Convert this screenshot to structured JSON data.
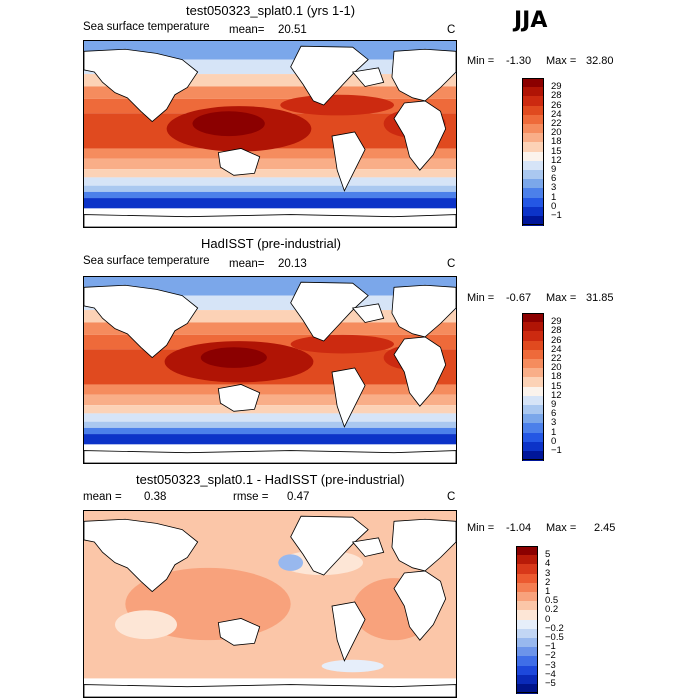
{
  "season": "JJA",
  "panels": [
    {
      "title": "test050323_splat0.1 (yrs 1-1)",
      "variable": "Sea surface temperature",
      "mean_label": "mean=",
      "mean_value": "20.51",
      "units": "C",
      "min_label": "Min =",
      "min_value": "-1.30",
      "max_label": "Max =",
      "max_value": "32.80",
      "colorbar": {
        "labels": [
          "29",
          "28",
          "26",
          "24",
          "22",
          "20",
          "18",
          "15",
          "12",
          "9",
          "6",
          "3",
          "1",
          "0",
          "−1"
        ],
        "colors": [
          "#8b0000",
          "#b01405",
          "#cc2a10",
          "#e04a1f",
          "#ee6a3a",
          "#f58c5e",
          "#f9ae88",
          "#fcd2b6",
          "#fbf3ec",
          "#d6e4f7",
          "#aac8f0",
          "#7ba7ea",
          "#4c80ea",
          "#2457e4",
          "#0c33c8",
          "#00169a"
        ]
      }
    },
    {
      "title": "HadISST (pre-industrial)",
      "variable": "Sea surface temperature",
      "mean_label": "mean=",
      "mean_value": "20.13",
      "units": "C",
      "min_label": "Min =",
      "min_value": "-0.67",
      "max_label": "Max =",
      "max_value": "31.85",
      "colorbar": {
        "labels": [
          "29",
          "28",
          "26",
          "24",
          "22",
          "20",
          "18",
          "15",
          "12",
          "9",
          "6",
          "3",
          "1",
          "0",
          "−1"
        ],
        "colors": [
          "#8b0000",
          "#b01405",
          "#cc2a10",
          "#e04a1f",
          "#ee6a3a",
          "#f58c5e",
          "#f9ae88",
          "#fcd2b6",
          "#fbf3ec",
          "#d6e4f7",
          "#aac8f0",
          "#7ba7ea",
          "#4c80ea",
          "#2457e4",
          "#0c33c8",
          "#00169a"
        ]
      }
    },
    {
      "title": "test050323_splat0.1 - HadISST (pre-industrial)",
      "mean_label": "mean =",
      "mean_value": "0.38",
      "rmse_label": "rmse =",
      "rmse_value": "0.47",
      "units": "C",
      "min_label": "Min =",
      "min_value": "-1.04",
      "max_label": "Max =",
      "max_value": "2.45",
      "colorbar": {
        "labels": [
          "5",
          "4",
          "3",
          "2",
          "1",
          "0.5",
          "0.2",
          "0",
          "−0.2",
          "−0.5",
          "−1",
          "−2",
          "−3",
          "−4",
          "−5"
        ],
        "colors": [
          "#8b0000",
          "#b81a08",
          "#d8381a",
          "#ec5a30",
          "#f47e52",
          "#f8a27c",
          "#fbc6a8",
          "#fde6d6",
          "#e6eefa",
          "#c2d6f4",
          "#98b8ee",
          "#6c94ea",
          "#3f6ee8",
          "#1d48db",
          "#0a2ab8",
          "#00148a"
        ]
      }
    }
  ]
}
